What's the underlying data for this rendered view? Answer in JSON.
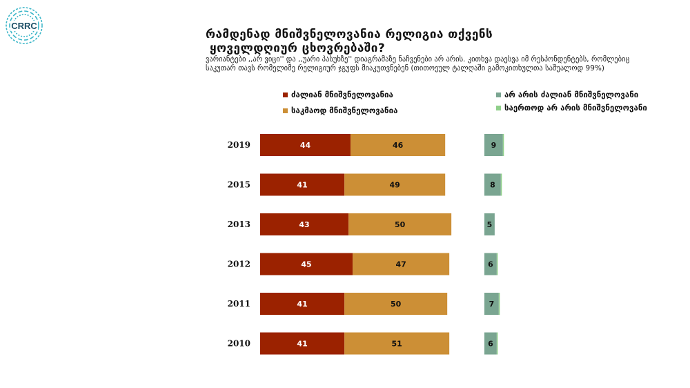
{
  "logo": {
    "text": "CRRC"
  },
  "title": {
    "line1": "რამდენად მნიშვნელოვანია რელიგია თქვენს",
    "line2": "ყოველდღიურ ცხოვრებაში?"
  },
  "subtitle": {
    "line1": "ვარიანტები ,,არ ვიცი'' და ,,უარი პასუხზე'' დიაგრამაზე ნაჩვენები არ არის. კითხვა დაესვა იმ რესპონდენტებს, რომლებიც",
    "line2": "საკუთარ თავს რომელიმე რელიგიურ ჯგუფს მიაკუთვნებენ (თითოეულ ტალღაში გამოკითხულთა საშუალოდ 99%)"
  },
  "legend": [
    {
      "label": "ძალიან მნიშვნელოვანია",
      "color": "#9b2200"
    },
    {
      "label": "საკმაოდ მნიშვნელოვანია",
      "color": "#cc8f36"
    },
    {
      "label": "არ არის ძალიან მნიშვნელოვანი",
      "color": "#7aa591"
    },
    {
      "label": "საერთოდ არ არის მნიშვნელოვანი",
      "color": "#8fcf8a"
    }
  ],
  "chart_data": {
    "type": "bar",
    "orientation": "horizontal-stacked",
    "categories": [
      "2019",
      "2015",
      "2013",
      "2012",
      "2011",
      "2010"
    ],
    "series": [
      {
        "name": "ძალიან მნიშვნელოვანია",
        "color": "#9b2200",
        "label_color": "#ffffff",
        "values": [
          44,
          41,
          43,
          45,
          41,
          41
        ]
      },
      {
        "name": "საკმაოდ მნიშვნელოვანია",
        "color": "#cc8f36",
        "label_color": "#111111",
        "values": [
          46,
          49,
          50,
          47,
          50,
          51
        ]
      },
      {
        "name": "არ არის ძალიან მნიშვნელოვანი",
        "color": "#7aa591",
        "label_color": "#111111",
        "values": [
          9,
          8,
          5,
          6,
          7,
          6
        ]
      },
      {
        "name": "საერთოდ არ არის მნიშვნელოვანი",
        "color": "#8fcf8a",
        "label_color": "#111111",
        "values": [
          0.5,
          0.5,
          0,
          0.5,
          0.5,
          0.5
        ]
      }
    ]
  }
}
